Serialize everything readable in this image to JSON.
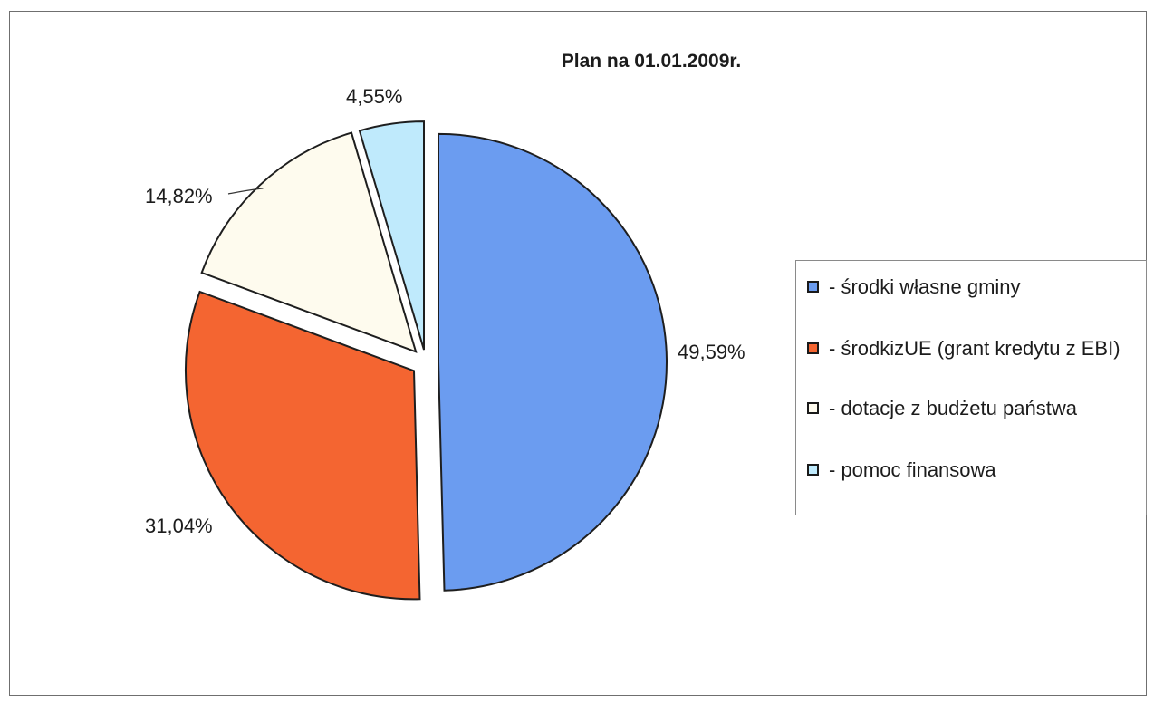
{
  "chart_data": {
    "type": "pie",
    "title": "Plan na 01.01.2009r.",
    "legend_position": "right",
    "series": [
      {
        "name": "- środki własne gminy",
        "value": 49.59,
        "label": "49,59%",
        "color": "#6b9cf0",
        "exploded": true
      },
      {
        "name": "- środkizUE (grant kredytu z EBI)",
        "value": 31.04,
        "label": "31,04%",
        "color": "#f46531",
        "exploded": true
      },
      {
        "name": "- dotacje z budżetu państwa",
        "value": 14.82,
        "label": "14,82%",
        "color": "#fefbee",
        "exploded": true
      },
      {
        "name": "- pomoc finansowa",
        "value": 4.55,
        "label": "4,55%",
        "color": "#bfeafc",
        "exploded": true
      }
    ]
  }
}
